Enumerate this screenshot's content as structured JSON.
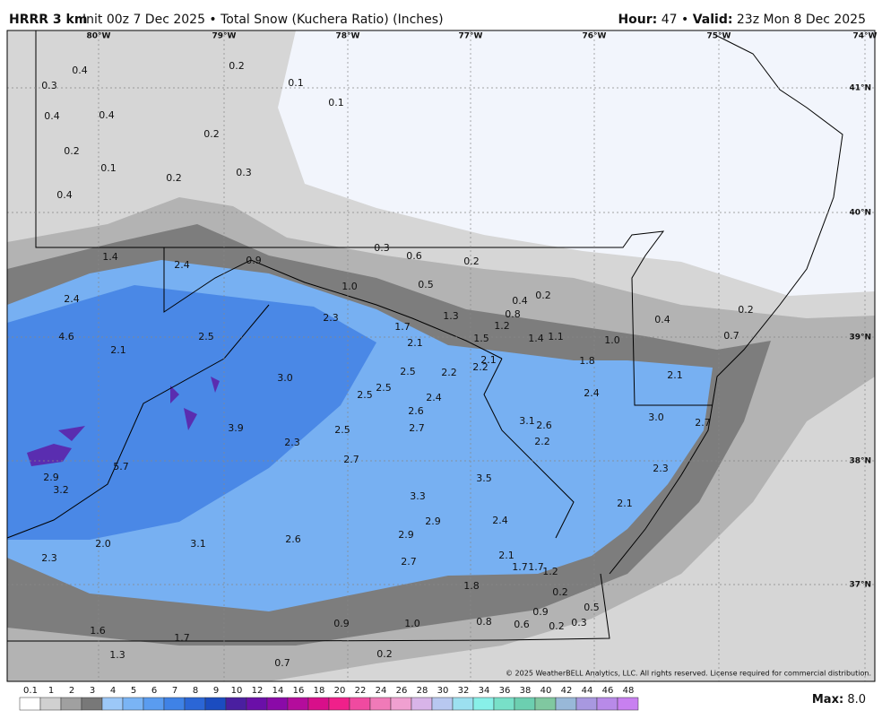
{
  "header": {
    "model": "HRRR 3 km",
    "product": "Init 00z 7 Dec 2025 • Total Snow (Kuchera Ratio) (Inches)",
    "hour_label": "Hour:",
    "hour": "47 •",
    "valid_label": "Valid:",
    "valid": "23z Mon 8 Dec 2025"
  },
  "longitudes": [
    "80°W",
    "79°W",
    "78°W",
    "77°W",
    "76°W",
    "75°W",
    "74°W"
  ],
  "latitudes": [
    "41°N",
    "40°N",
    "39°N",
    "38°N",
    "37°N"
  ],
  "map_labels": [
    "0.4",
    "0.2",
    "0.3",
    "0.1",
    "0.4",
    "0.4",
    "0.1",
    "0.2",
    "0.2",
    "0.1",
    "0.3",
    "0.2",
    "0.4",
    "0.3",
    "0.6",
    "0.2",
    "1.4",
    "2.4",
    "0.9",
    "1.0",
    "0.5",
    "2.4",
    "0.4",
    "0.2",
    "2.3",
    "1.3",
    "0.8",
    "4.6",
    "2.5",
    "1.7",
    "1.2",
    "2.1",
    "1.5",
    "1.4",
    "1.1",
    "1.0",
    "0.4",
    "0.2",
    "0.7",
    "2.1",
    "2.1",
    "1.8",
    "2.2",
    "2.5",
    "2.2",
    "3.0",
    "2.5",
    "2.5",
    "2.4",
    "2.4",
    "2.1",
    "2.6",
    "3.1",
    "2.6",
    "3.0",
    "2.7",
    "3.9",
    "2.7",
    "2.5",
    "2.3",
    "2.2",
    "2.7",
    "5.7",
    "3.5",
    "2.3",
    "2.9",
    "3.2",
    "3.3",
    "2.1",
    "2.9",
    "2.4",
    "2.9",
    "2.0",
    "3.1",
    "2.6",
    "2.1",
    "2.7",
    "2.3",
    "1.7",
    "1.7",
    "1.2",
    "1.8",
    "0.2",
    "0.5",
    "0.9",
    "1.0",
    "0.8",
    "0.6",
    "0.9",
    "0.2",
    "0.3",
    "1.6",
    "1.7",
    "1.3",
    "0.7",
    "0.2"
  ],
  "copyright": "© 2025 WeatherBELL Analytics, LLC. All rights reserved. License required for commercial distribution.",
  "colorbar_labels": [
    "0.1",
    "1",
    "2",
    "3",
    "4",
    "5",
    "6",
    "7",
    "8",
    "9",
    "10",
    "12",
    "14",
    "16",
    "18",
    "20",
    "22",
    "24",
    "26",
    "28",
    "30",
    "32",
    "34",
    "36",
    "38",
    "40",
    "42",
    "44",
    "46",
    "48"
  ],
  "max_label": "Max:",
  "max_value": "8.0"
}
